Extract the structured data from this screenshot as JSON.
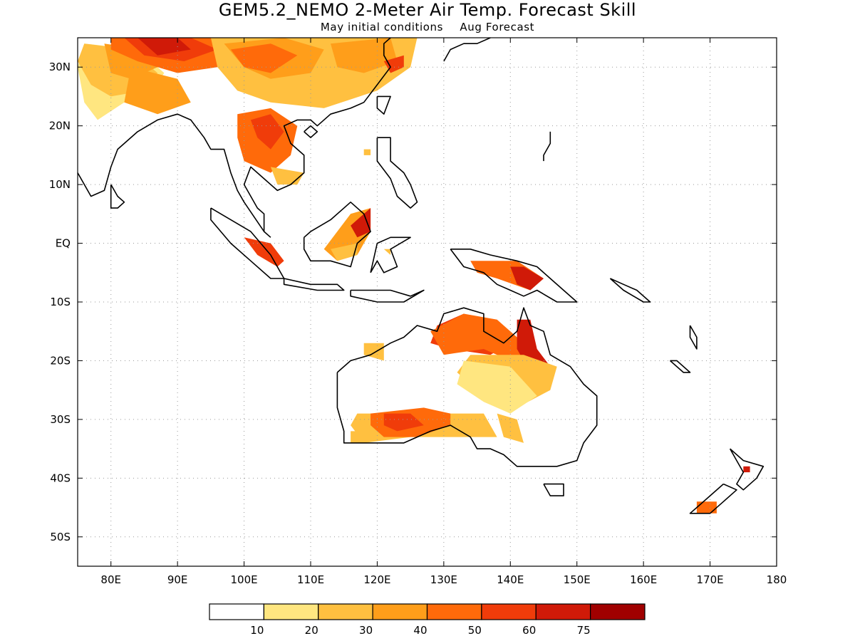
{
  "title": "GEM5.2_NEMO 2-Meter Air Temp. Forecast Skill",
  "subtitle": {
    "initial": "May initial conditions",
    "forecast": "Aug Forecast"
  },
  "map": {
    "lon_range": [
      75,
      180
    ],
    "lat_range": [
      -55,
      35
    ],
    "lat_ticks": [
      {
        "value": 30,
        "label": "30N"
      },
      {
        "value": 20,
        "label": "20N"
      },
      {
        "value": 10,
        "label": "10N"
      },
      {
        "value": 0,
        "label": "EQ"
      },
      {
        "value": -10,
        "label": "10S"
      },
      {
        "value": -20,
        "label": "20S"
      },
      {
        "value": -30,
        "label": "30S"
      },
      {
        "value": -40,
        "label": "40S"
      },
      {
        "value": -50,
        "label": "50S"
      }
    ],
    "lon_ticks": [
      {
        "value": 80,
        "label": "80E"
      },
      {
        "value": 90,
        "label": "90E"
      },
      {
        "value": 100,
        "label": "100E"
      },
      {
        "value": 110,
        "label": "110E"
      },
      {
        "value": 120,
        "label": "120E"
      },
      {
        "value": 130,
        "label": "130E"
      },
      {
        "value": 140,
        "label": "140E"
      },
      {
        "value": 150,
        "label": "150E"
      },
      {
        "value": 160,
        "label": "160E"
      },
      {
        "value": 170,
        "label": "170E"
      },
      {
        "value": 180,
        "label": "180"
      }
    ],
    "grid": true
  },
  "colorbar": {
    "bins": [
      {
        "color": "#ffffff"
      },
      {
        "color": "#ffe680"
      },
      {
        "color": "#ffc040"
      },
      {
        "color": "#ff9e1a"
      },
      {
        "color": "#ff6a0a"
      },
      {
        "color": "#f03c0a"
      },
      {
        "color": "#d01a08"
      },
      {
        "color": "#a00000"
      }
    ],
    "labels": [
      "10",
      "20",
      "30",
      "40",
      "50",
      "60",
      "75"
    ]
  }
}
